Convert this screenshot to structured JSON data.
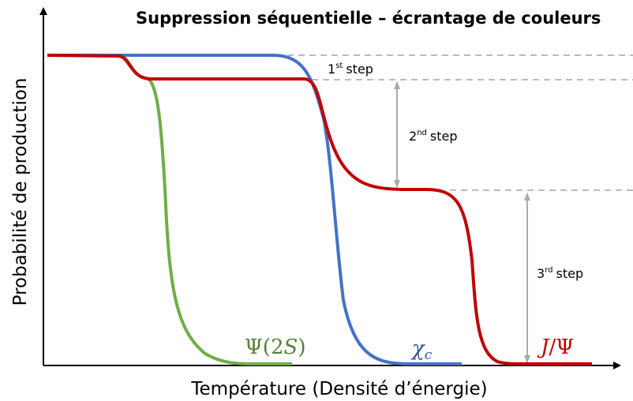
{
  "title": "Suppression séquentielle – écrantage de couleurs",
  "y_axis_label": "Probabilité de production",
  "x_axis_label": "Température (Densité d’énergie)",
  "curves": [
    {
      "main": "Ψ(2",
      "italic": "S",
      "end": ")"
    },
    {
      "main": "χ",
      "sub": "c"
    },
    {
      "main": "J",
      "end": "/Ψ"
    }
  ],
  "steps": [
    {
      "num": "1",
      "sup": "st",
      "word": "step"
    },
    {
      "num": "2",
      "sup": "nd",
      "word": "step"
    },
    {
      "num": "3",
      "sup": "rd",
      "word": "step"
    }
  ]
}
